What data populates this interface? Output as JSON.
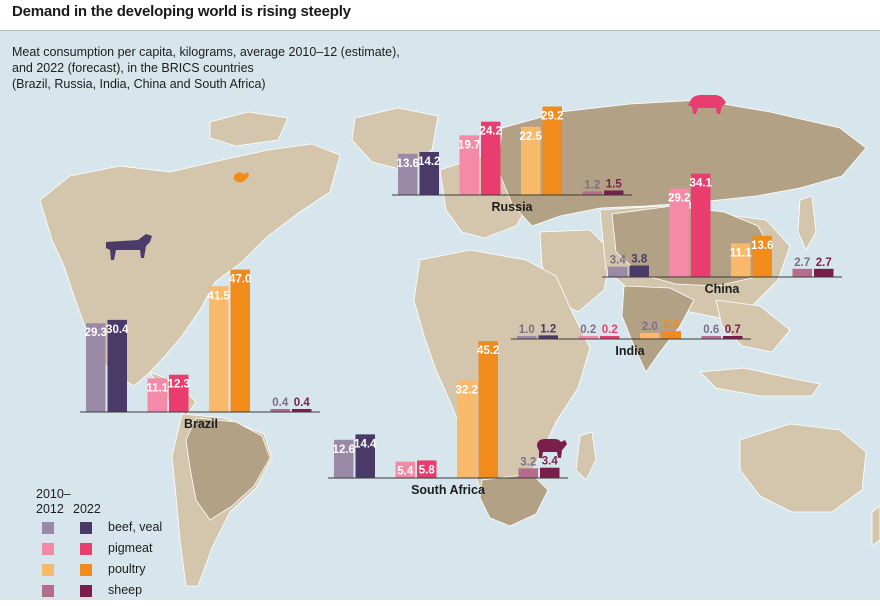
{
  "headline": "Demand in the developing world is rising steeply",
  "subtitle": [
    "Meat consumption per capita, kilograms, average 2010–12 (estimate),",
    "and 2022 (forecast), in the BRICS countries",
    "(Brazil, Russia, India, China and South Africa)"
  ],
  "legend": {
    "period_a": [
      "2010–",
      "2012"
    ],
    "period_b": "2022",
    "items": [
      {
        "label": "beef, veal",
        "color_a": "#9b8aa7",
        "color_b": "#493a67"
      },
      {
        "label": "pigmeat",
        "color_a": "#f48aa7",
        "color_b": "#e93d6f"
      },
      {
        "label": "poultry",
        "color_a": "#f8b96b",
        "color_b": "#f18b1b"
      },
      {
        "label": "sheep",
        "color_a": "#b46e8b",
        "color_b": "#7a1f4c"
      }
    ]
  },
  "colors": {
    "ocean": "#d7e6ec",
    "land": "#d4c6ad",
    "land_highlight": "#b3a186",
    "border": "#ffffff",
    "label_light": "#7b7186"
  },
  "chart_data": {
    "type": "bar",
    "title": "Demand in the developing world is rising steeply",
    "subtitle": "Meat consumption per capita, kilograms, average 2010–12 (estimate), and 2022 (forecast), in the BRICS countries (Brazil, Russia, India, China and South Africa)",
    "unit": "kilograms",
    "categories": [
      "beef, veal",
      "pigmeat",
      "poultry",
      "sheep"
    ],
    "periods": [
      "2010–2012",
      "2022"
    ],
    "countries": [
      {
        "name": "Brazil",
        "values": {
          "beef, veal": [
            29.3,
            30.4
          ],
          "pigmeat": [
            11.1,
            12.3
          ],
          "poultry": [
            41.5,
            47.0
          ],
          "sheep": [
            0.4,
            0.4
          ]
        },
        "icon": "cow-icon"
      },
      {
        "name": "Russia",
        "values": {
          "beef, veal": [
            13.6,
            14.2
          ],
          "pigmeat": [
            19.7,
            24.2
          ],
          "poultry": [
            22.5,
            29.2
          ],
          "sheep": [
            1.2,
            1.5
          ]
        }
      },
      {
        "name": "China",
        "values": {
          "beef, veal": [
            3.4,
            3.8
          ],
          "pigmeat": [
            29.2,
            34.1
          ],
          "poultry": [
            11.1,
            13.6
          ],
          "sheep": [
            2.7,
            2.7
          ]
        },
        "icon": "pig-icon"
      },
      {
        "name": "India",
        "values": {
          "beef, veal": [
            1.0,
            1.2
          ],
          "pigmeat": [
            0.2,
            0.2
          ],
          "poultry": [
            2.0,
            2.6
          ],
          "sheep": [
            0.6,
            0.7
          ]
        }
      },
      {
        "name": "South Africa",
        "values": {
          "beef, veal": [
            12.6,
            14.4
          ],
          "pigmeat": [
            5.4,
            5.8
          ],
          "poultry": [
            32.2,
            45.2
          ],
          "sheep": [
            3.2,
            3.4
          ]
        },
        "icon": "sheep-icon"
      }
    ],
    "value_labels": {
      "Brazil": [
        [
          "29.3",
          "30.4"
        ],
        [
          "11.1",
          "12.3"
        ],
        [
          "41.5",
          "47.0"
        ],
        [
          "0.4",
          "0.4"
        ]
      ],
      "Russia": [
        [
          "13.6",
          "14.2"
        ],
        [
          "19.7",
          "24.2"
        ],
        [
          "22.5",
          "29.2"
        ],
        [
          "1.2",
          "1.5"
        ]
      ],
      "China": [
        [
          "3.4",
          "3.8"
        ],
        [
          "29.2",
          "34.1"
        ],
        [
          "11.1",
          "13.6"
        ],
        [
          "2.7",
          "2.7"
        ]
      ],
      "India": [
        [
          "1.0",
          "1.2"
        ],
        [
          "0.2",
          "0.2"
        ],
        [
          "2.0",
          "2.6"
        ],
        [
          "0.6",
          "0.7"
        ]
      ],
      "South Africa": [
        [
          "12.6",
          "14.4"
        ],
        [
          "5.4",
          "5.8"
        ],
        [
          "32.2",
          "45.2"
        ],
        [
          "3.2",
          "3.4"
        ]
      ]
    },
    "extra_icons": [
      "chicken-icon"
    ],
    "legend_placement": "bottom-left",
    "grid": false
  }
}
